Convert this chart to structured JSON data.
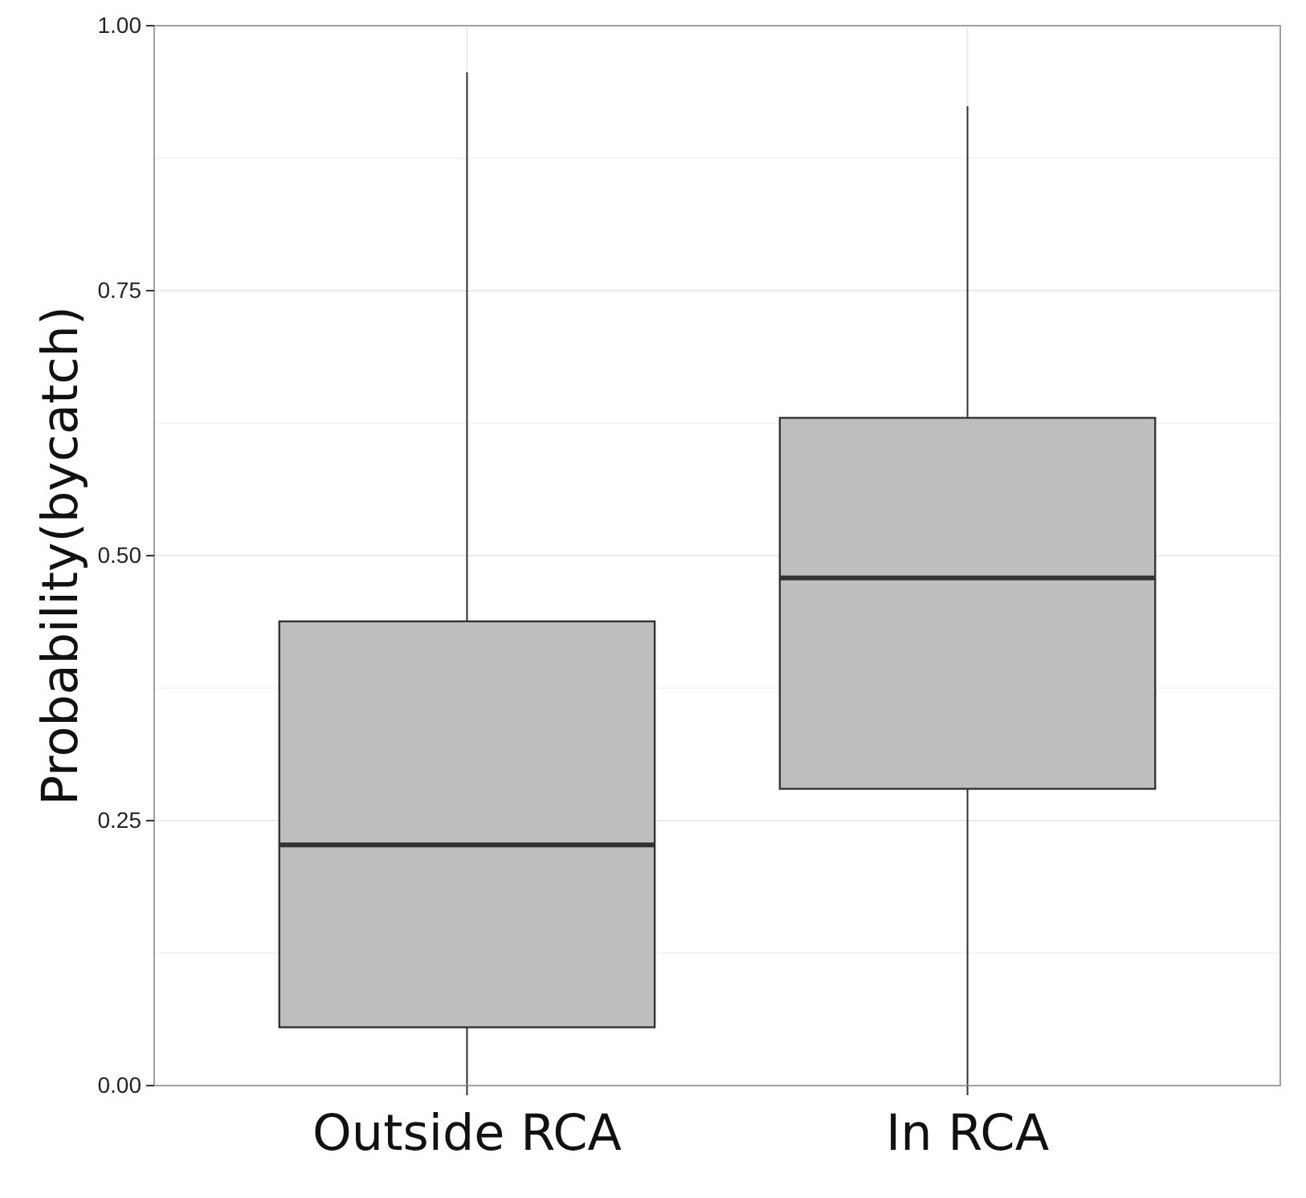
{
  "chart_data": {
    "type": "box",
    "ylabel": "Probability(bycatch)",
    "categories": [
      "Outside RCA",
      "In RCA"
    ],
    "boxes": [
      {
        "low": 0,
        "q1": 0.055,
        "median": 0.227,
        "q3": 0.438,
        "high": 0.956
      },
      {
        "low": 0,
        "q1": 0.28,
        "median": 0.479,
        "q3": 0.63,
        "high": 0.924
      }
    ],
    "color": "#bebebe",
    "ylim": [
      0,
      1
    ],
    "yticks": [
      {
        "value": 0,
        "label": "0.00"
      },
      {
        "value": 0.25,
        "label": "0.25"
      },
      {
        "value": 0.5,
        "label": "0.50"
      },
      {
        "value": 0.75,
        "label": "0.75"
      },
      {
        "value": 1,
        "label": "1.00"
      }
    ],
    "grid": true
  }
}
